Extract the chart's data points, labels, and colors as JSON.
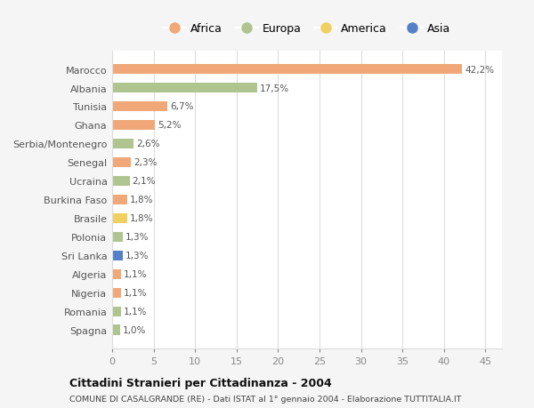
{
  "countries": [
    "Marocco",
    "Albania",
    "Tunisia",
    "Ghana",
    "Serbia/Montenegro",
    "Senegal",
    "Ucraina",
    "Burkina Faso",
    "Brasile",
    "Polonia",
    "Sri Lanka",
    "Algeria",
    "Nigeria",
    "Romania",
    "Spagna"
  ],
  "values": [
    42.2,
    17.5,
    6.7,
    5.2,
    2.6,
    2.3,
    2.1,
    1.8,
    1.8,
    1.3,
    1.3,
    1.1,
    1.1,
    1.1,
    1.0
  ],
  "labels": [
    "42,2%",
    "17,5%",
    "6,7%",
    "5,2%",
    "2,6%",
    "2,3%",
    "2,1%",
    "1,8%",
    "1,8%",
    "1,3%",
    "1,3%",
    "1,1%",
    "1,1%",
    "1,1%",
    "1,0%"
  ],
  "continents": [
    "Africa",
    "Europa",
    "Africa",
    "Africa",
    "Europa",
    "Africa",
    "Europa",
    "Africa",
    "America",
    "Europa",
    "Asia",
    "Africa",
    "Africa",
    "Europa",
    "Europa"
  ],
  "continent_colors": {
    "Africa": "#F0A878",
    "Europa": "#B0C490",
    "America": "#F0D060",
    "Asia": "#5580C8"
  },
  "legend_items": [
    "Africa",
    "Europa",
    "America",
    "Asia"
  ],
  "title": "Cittadini Stranieri per Cittadinanza - 2004",
  "subtitle": "COMUNE DI CASALGRANDE (RE) - Dati ISTAT al 1° gennaio 2004 - Elaborazione TUTTITALIA.IT",
  "xlim": [
    0,
    47
  ],
  "xticks": [
    0,
    5,
    10,
    15,
    20,
    25,
    30,
    35,
    40,
    45
  ],
  "bg_color": "#f5f5f5",
  "plot_bg_color": "#ffffff",
  "grid_color": "#dddddd"
}
